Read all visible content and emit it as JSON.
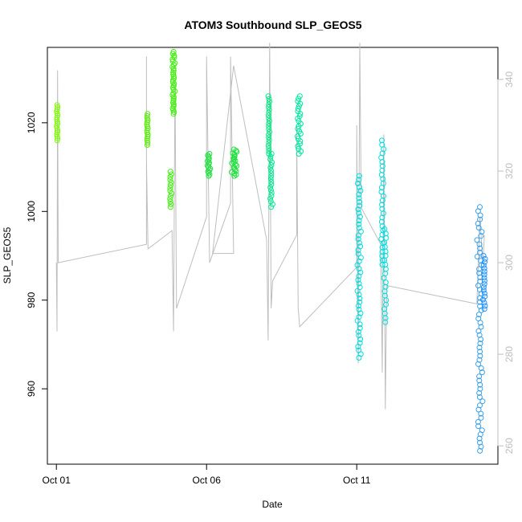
{
  "chart_data": {
    "type": "scatter",
    "title": "ATOM3 Southbound SLP_GEOS5",
    "xlabel": "Date",
    "ylabel": "SLP_GEOS5",
    "x_ticks": [
      {
        "label": "Oct 01",
        "day": 1
      },
      {
        "label": "Oct 06",
        "day": 6
      },
      {
        "label": "Oct 11",
        "day": 11
      }
    ],
    "xlim": [
      0.7,
      15.7
    ],
    "ylim": [
      943,
      1037
    ],
    "y_ticks": [
      960,
      980,
      1000,
      1020
    ],
    "y2lim": [
      256,
      347
    ],
    "y2_ticks": [
      260,
      280,
      300,
      320,
      340
    ],
    "grid": false,
    "colors": {
      "secondary_series": "#bebebe",
      "axis_right": "#bdbdbd",
      "early": "#7cfc00",
      "mid": "#00e04a",
      "late": "#00ced1",
      "end": "#1e90ff"
    },
    "point_groups": [
      {
        "day_start": 1.0,
        "day_end": 1.05,
        "y_min": 1016,
        "y_max": 1024,
        "count": 18,
        "color": "#7cfc00"
      },
      {
        "day_start": 4.0,
        "day_end": 4.05,
        "y_min": 1015,
        "y_max": 1022,
        "count": 16,
        "color": "#55ee00"
      },
      {
        "day_start": 4.75,
        "day_end": 4.85,
        "y_min": 1001,
        "y_max": 1009,
        "count": 14,
        "color": "#44ee11"
      },
      {
        "day_start": 4.85,
        "day_end": 4.95,
        "y_min": 1022,
        "y_max": 1036,
        "count": 34,
        "color": "#44ee11"
      },
      {
        "day_start": 6.0,
        "day_end": 6.15,
        "y_min": 1008,
        "y_max": 1013,
        "count": 16,
        "color": "#22e040"
      },
      {
        "day_start": 6.8,
        "day_end": 7.05,
        "y_min": 1008,
        "y_max": 1014,
        "count": 22,
        "color": "#22e040"
      },
      {
        "day_start": 8.05,
        "day_end": 8.1,
        "y_min": 1013,
        "y_max": 1026,
        "count": 22,
        "color": "#00e880"
      },
      {
        "day_start": 8.1,
        "day_end": 8.2,
        "y_min": 1001,
        "y_max": 1013,
        "count": 20,
        "color": "#00e890"
      },
      {
        "day_start": 9.0,
        "day_end": 9.15,
        "y_min": 1013,
        "y_max": 1026,
        "count": 24,
        "color": "#00e8a0"
      },
      {
        "day_start": 11.0,
        "day_end": 11.15,
        "y_min": 967,
        "y_max": 1008,
        "count": 50,
        "color": "#00dde0"
      },
      {
        "day_start": 11.8,
        "day_end": 11.9,
        "y_min": 988,
        "y_max": 1016,
        "count": 30,
        "color": "#00dde0"
      },
      {
        "day_start": 11.9,
        "day_end": 12.0,
        "y_min": 975,
        "y_max": 996,
        "count": 22,
        "color": "#00dde0"
      },
      {
        "day_start": 15.0,
        "day_end": 15.2,
        "y_min": 946,
        "y_max": 1001,
        "count": 60,
        "color": "#3aa0e8"
      },
      {
        "day_start": 15.2,
        "day_end": 15.3,
        "y_min": 978,
        "y_max": 990,
        "count": 18,
        "color": "#1e90ff"
      }
    ],
    "secondary_path": [
      [
        1.0,
        300
      ],
      [
        1.02,
        285
      ],
      [
        1.04,
        342
      ],
      [
        1.06,
        300
      ],
      [
        4.0,
        304
      ],
      [
        4.0,
        345
      ],
      [
        4.0,
        322
      ],
      [
        4.05,
        303
      ],
      [
        4.85,
        307
      ],
      [
        4.9,
        285
      ],
      [
        4.95,
        340
      ],
      [
        5.0,
        290
      ],
      [
        6.0,
        310
      ],
      [
        6.0,
        345
      ],
      [
        6.1,
        300
      ],
      [
        6.8,
        313
      ],
      [
        6.8,
        345
      ],
      [
        6.9,
        302
      ],
      [
        6.2,
        302
      ],
      [
        6.9,
        343
      ],
      [
        8.0,
        305
      ],
      [
        8.05,
        283
      ],
      [
        8.1,
        348
      ],
      [
        8.15,
        290
      ],
      [
        8.2,
        296
      ],
      [
        9.0,
        306
      ],
      [
        9.0,
        330
      ],
      [
        9.05,
        290
      ],
      [
        9.1,
        286
      ],
      [
        11.0,
        299
      ],
      [
        11.0,
        330
      ],
      [
        11.05,
        278
      ],
      [
        11.1,
        348
      ],
      [
        11.15,
        312
      ],
      [
        11.8,
        304
      ],
      [
        11.85,
        276
      ],
      [
        11.9,
        328
      ],
      [
        11.95,
        268
      ],
      [
        12.0,
        295
      ],
      [
        15.0,
        291
      ],
      [
        15.1,
        310
      ],
      [
        15.2,
        300
      ],
      [
        15.25,
        306
      ]
    ]
  }
}
